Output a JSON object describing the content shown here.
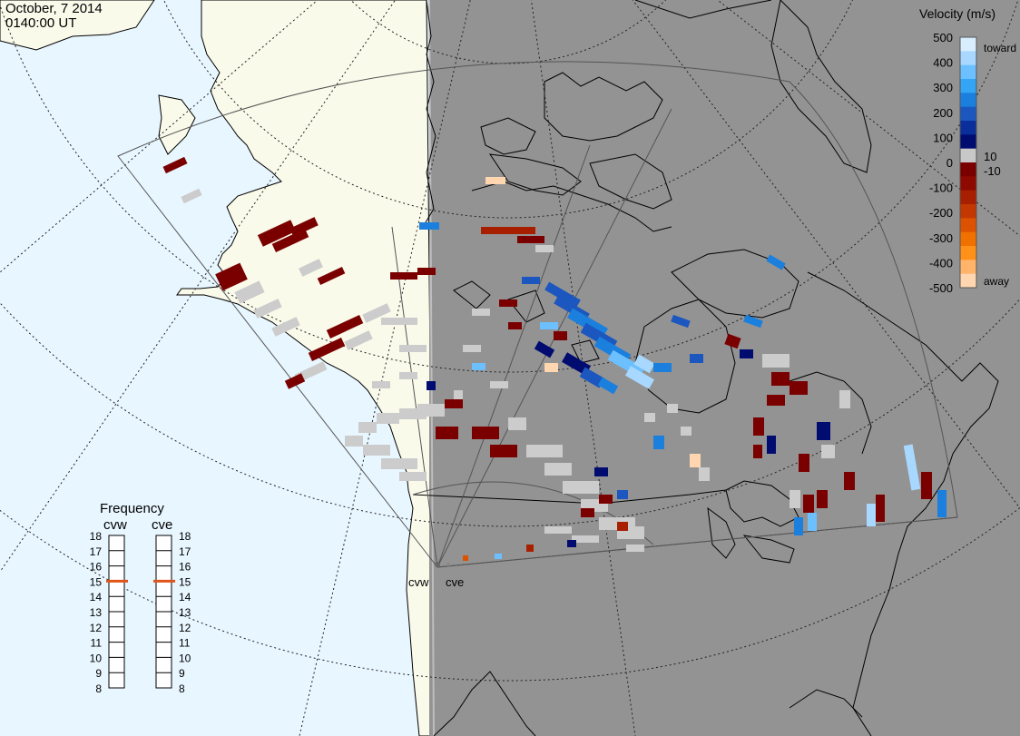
{
  "header": {
    "date": "October, 7 2014",
    "time": "0140:00 UT"
  },
  "radars": [
    {
      "code": "cvw"
    },
    {
      "code": "cve"
    }
  ],
  "velocity_scale": {
    "title": "Velocity (m/s)",
    "ticks": [
      "500",
      "400",
      "300",
      "200",
      "100",
      "0",
      "-100",
      "-200",
      "-300",
      "-400",
      "-500"
    ],
    "inner_ticks": [
      "10",
      "-10"
    ],
    "toward_label": "toward",
    "away_label": "away",
    "colors_top_to_bottom": [
      "#d8eeff",
      "#a8d8ff",
      "#6cc0ff",
      "#34a4f4",
      "#1a7fdd",
      "#1b57bf",
      "#0a2f9b",
      "#000c70",
      "#c8c8c8",
      "#7a0000",
      "#8e0a00",
      "#a81f00",
      "#c23800",
      "#dc5200",
      "#f07000",
      "#ff9018",
      "#ffb46a",
      "#ffd6b0"
    ]
  },
  "frequency": {
    "title": "Frequency",
    "left_label": "cvw",
    "right_label": "cve",
    "ticks": [
      "18",
      "17",
      "16",
      "15",
      "14",
      "13",
      "12",
      "11",
      "10",
      "9",
      "8"
    ],
    "cvw_mhz": 15,
    "cve_mhz": 15,
    "marker_color": "#e0551a"
  },
  "colors": {
    "ocean_day": "#e8f6ff",
    "land_day": "#fafaeb",
    "night": "#939393",
    "no_data_cell": "#cccccc"
  }
}
